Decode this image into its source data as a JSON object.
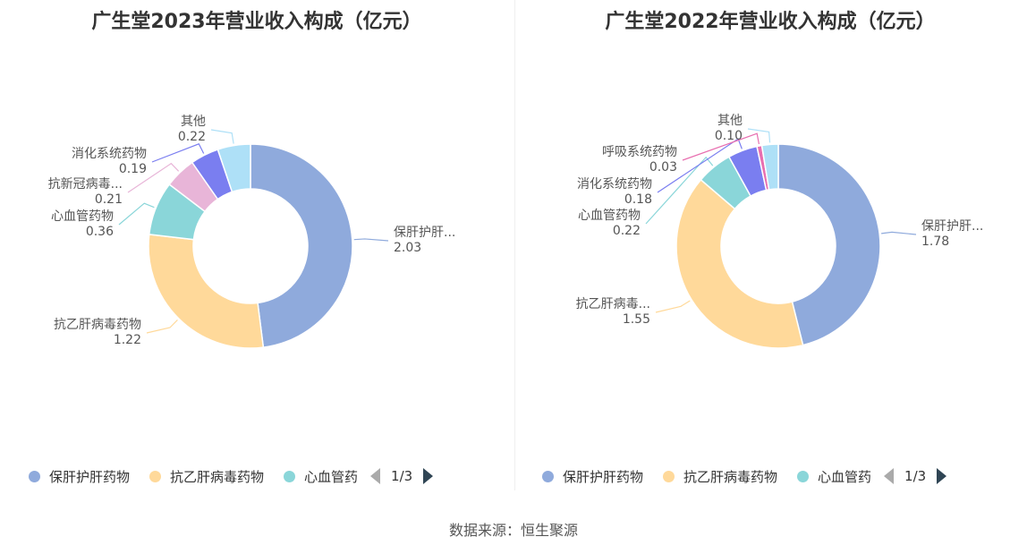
{
  "source": "数据来源：恒生聚源",
  "colors": [
    "#8faadc",
    "#ffd99a",
    "#8ad6d9",
    "#e8b5d8",
    "#7a7ef0",
    "#aee0f7"
  ],
  "chart_data": [
    {
      "type": "pie",
      "donut": true,
      "title": "广生堂2023年营业收入构成（亿元）",
      "slices": [
        {
          "name": "保肝护肝药物",
          "label": "保肝护肝...",
          "value": 2.03,
          "value_label": "2.03",
          "color": "#8faadc"
        },
        {
          "name": "抗乙肝病毒药物",
          "label": "抗乙肝病毒药物",
          "value": 1.22,
          "value_label": "1.22",
          "color": "#ffd99a"
        },
        {
          "name": "心血管药物",
          "label": "心血管药物",
          "value": 0.36,
          "value_label": "0.36",
          "color": "#8ad6d9"
        },
        {
          "name": "抗新冠病毒药物",
          "label": "抗新冠病毒...",
          "value": 0.21,
          "value_label": "0.21",
          "color": "#e8b5d8"
        },
        {
          "name": "消化系统药物",
          "label": "消化系统药物",
          "value": 0.19,
          "value_label": "0.19",
          "color": "#7a7ef0"
        },
        {
          "name": "其他",
          "label": "其他",
          "value": 0.22,
          "value_label": "0.22",
          "color": "#aee0f7"
        }
      ],
      "legend": {
        "items": [
          "保肝护肝药物",
          "抗乙肝病毒药物",
          "心血管药"
        ],
        "page": "1/3",
        "position": "bottom"
      }
    },
    {
      "type": "pie",
      "donut": true,
      "title": "广生堂2022年营业收入构成（亿元）",
      "slices": [
        {
          "name": "保肝护肝药物",
          "label": "保肝护肝...",
          "value": 1.78,
          "value_label": "1.78",
          "color": "#8faadc"
        },
        {
          "name": "抗乙肝病毒药物",
          "label": "抗乙肝病毒...",
          "value": 1.55,
          "value_label": "1.55",
          "color": "#ffd99a"
        },
        {
          "name": "心血管药物",
          "label": "心血管药物",
          "value": 0.22,
          "value_label": "0.22",
          "color": "#8ad6d9"
        },
        {
          "name": "消化系统药物",
          "label": "消化系统药物",
          "value": 0.18,
          "value_label": "0.18",
          "color": "#7a7ef0"
        },
        {
          "name": "呼吸系统药物",
          "label": "呼吸系统药物",
          "value": 0.03,
          "value_label": "0.03",
          "color": "#e86fb0"
        },
        {
          "name": "其他",
          "label": "其他",
          "value": 0.1,
          "value_label": "0.10",
          "color": "#aee0f7"
        }
      ],
      "legend": {
        "items": [
          "保肝护肝药物",
          "抗乙肝病毒药物",
          "心血管药"
        ],
        "page": "1/3",
        "position": "bottom"
      }
    }
  ]
}
